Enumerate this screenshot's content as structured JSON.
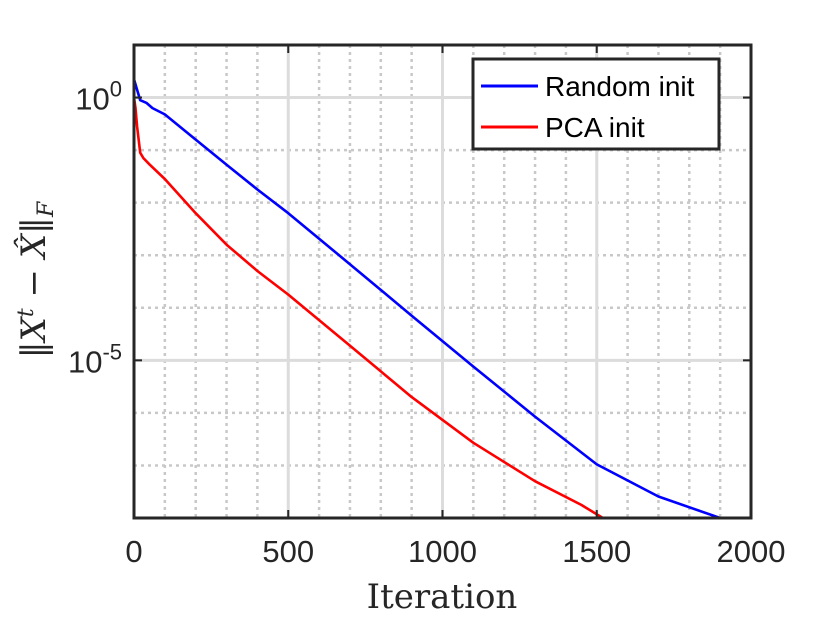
{
  "chart_data": {
    "type": "line",
    "title": "",
    "xlabel": "Iteration",
    "ylabel": "||X^t − X̂||_F",
    "xlim": [
      0,
      2000
    ],
    "ylim_log10": [
      -8,
      1
    ],
    "y_scale": "log",
    "x_ticks": [
      0,
      500,
      1000,
      1500,
      2000
    ],
    "x_tick_labels": [
      "0",
      "500",
      "1000",
      "1500",
      "2000"
    ],
    "y_ticks_log10": [
      0,
      -5
    ],
    "y_tick_labels": [
      {
        "base": "10",
        "exp": "0"
      },
      {
        "base": "10",
        "exp": "-5"
      }
    ],
    "grid": true,
    "legend_position": "top-right",
    "series": [
      {
        "name": "Random init",
        "color": "#0000ff",
        "x": [
          0,
          10,
          20,
          40,
          60,
          100,
          200,
          300,
          400,
          500,
          700,
          900,
          1100,
          1300,
          1500,
          1700,
          1900,
          1912
        ],
        "log10_y": [
          0.35,
          0.15,
          -0.05,
          -0.1,
          -0.2,
          -0.32,
          -0.8,
          -1.28,
          -1.75,
          -2.2,
          -3.17,
          -4.15,
          -5.12,
          -6.07,
          -6.98,
          -7.59,
          -8.0,
          -8.02
        ]
      },
      {
        "name": "PCA init",
        "color": "#ff0000",
        "x": [
          0,
          5,
          10,
          20,
          30,
          50,
          100,
          200,
          300,
          400,
          500,
          700,
          900,
          1100,
          1300,
          1450,
          1520,
          1540
        ],
        "log10_y": [
          0.0,
          -0.2,
          -0.55,
          -1.05,
          -1.15,
          -1.27,
          -1.55,
          -2.2,
          -2.8,
          -3.3,
          -3.75,
          -4.72,
          -5.7,
          -6.57,
          -7.3,
          -7.75,
          -8.0,
          -8.02
        ]
      }
    ]
  }
}
